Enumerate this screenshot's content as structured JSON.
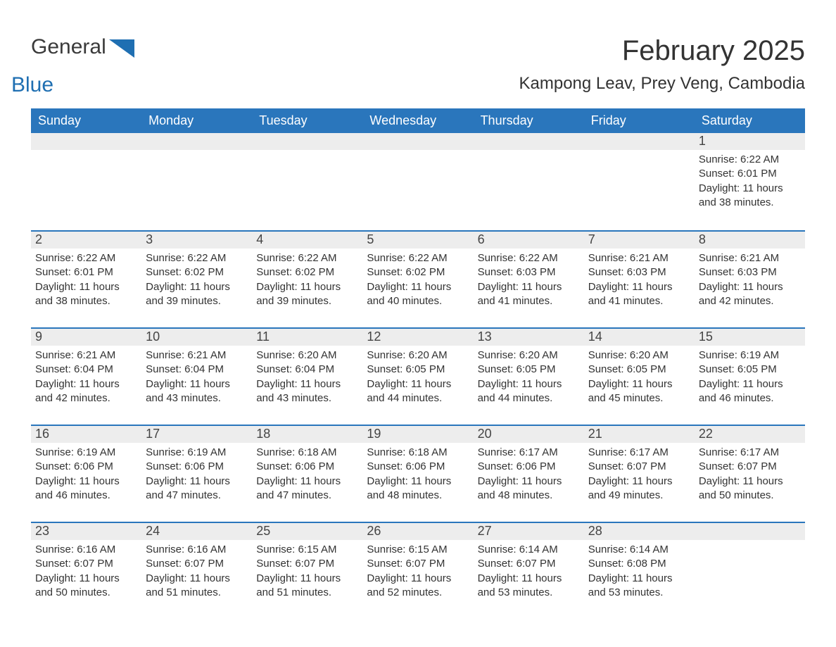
{
  "brand": {
    "name1": "General",
    "name2": "Blue",
    "logo_color": "#1f6fb2"
  },
  "title": "February 2025",
  "location": "Kampong Leav, Prey Veng, Cambodia",
  "colors": {
    "header_bg": "#2a76bc",
    "header_text": "#ffffff",
    "daynum_bg": "#ededed",
    "text": "#333333",
    "page_bg": "#ffffff"
  },
  "calendar": {
    "day_names": [
      "Sunday",
      "Monday",
      "Tuesday",
      "Wednesday",
      "Thursday",
      "Friday",
      "Saturday"
    ],
    "first_weekday_index": 6,
    "days": [
      {
        "n": 1,
        "sunrise": "6:22 AM",
        "sunset": "6:01 PM",
        "daylight": "11 hours and 38 minutes."
      },
      {
        "n": 2,
        "sunrise": "6:22 AM",
        "sunset": "6:01 PM",
        "daylight": "11 hours and 38 minutes."
      },
      {
        "n": 3,
        "sunrise": "6:22 AM",
        "sunset": "6:02 PM",
        "daylight": "11 hours and 39 minutes."
      },
      {
        "n": 4,
        "sunrise": "6:22 AM",
        "sunset": "6:02 PM",
        "daylight": "11 hours and 39 minutes."
      },
      {
        "n": 5,
        "sunrise": "6:22 AM",
        "sunset": "6:02 PM",
        "daylight": "11 hours and 40 minutes."
      },
      {
        "n": 6,
        "sunrise": "6:22 AM",
        "sunset": "6:03 PM",
        "daylight": "11 hours and 41 minutes."
      },
      {
        "n": 7,
        "sunrise": "6:21 AM",
        "sunset": "6:03 PM",
        "daylight": "11 hours and 41 minutes."
      },
      {
        "n": 8,
        "sunrise": "6:21 AM",
        "sunset": "6:03 PM",
        "daylight": "11 hours and 42 minutes."
      },
      {
        "n": 9,
        "sunrise": "6:21 AM",
        "sunset": "6:04 PM",
        "daylight": "11 hours and 42 minutes."
      },
      {
        "n": 10,
        "sunrise": "6:21 AM",
        "sunset": "6:04 PM",
        "daylight": "11 hours and 43 minutes."
      },
      {
        "n": 11,
        "sunrise": "6:20 AM",
        "sunset": "6:04 PM",
        "daylight": "11 hours and 43 minutes."
      },
      {
        "n": 12,
        "sunrise": "6:20 AM",
        "sunset": "6:05 PM",
        "daylight": "11 hours and 44 minutes."
      },
      {
        "n": 13,
        "sunrise": "6:20 AM",
        "sunset": "6:05 PM",
        "daylight": "11 hours and 44 minutes."
      },
      {
        "n": 14,
        "sunrise": "6:20 AM",
        "sunset": "6:05 PM",
        "daylight": "11 hours and 45 minutes."
      },
      {
        "n": 15,
        "sunrise": "6:19 AM",
        "sunset": "6:05 PM",
        "daylight": "11 hours and 46 minutes."
      },
      {
        "n": 16,
        "sunrise": "6:19 AM",
        "sunset": "6:06 PM",
        "daylight": "11 hours and 46 minutes."
      },
      {
        "n": 17,
        "sunrise": "6:19 AM",
        "sunset": "6:06 PM",
        "daylight": "11 hours and 47 minutes."
      },
      {
        "n": 18,
        "sunrise": "6:18 AM",
        "sunset": "6:06 PM",
        "daylight": "11 hours and 47 minutes."
      },
      {
        "n": 19,
        "sunrise": "6:18 AM",
        "sunset": "6:06 PM",
        "daylight": "11 hours and 48 minutes."
      },
      {
        "n": 20,
        "sunrise": "6:17 AM",
        "sunset": "6:06 PM",
        "daylight": "11 hours and 48 minutes."
      },
      {
        "n": 21,
        "sunrise": "6:17 AM",
        "sunset": "6:07 PM",
        "daylight": "11 hours and 49 minutes."
      },
      {
        "n": 22,
        "sunrise": "6:17 AM",
        "sunset": "6:07 PM",
        "daylight": "11 hours and 50 minutes."
      },
      {
        "n": 23,
        "sunrise": "6:16 AM",
        "sunset": "6:07 PM",
        "daylight": "11 hours and 50 minutes."
      },
      {
        "n": 24,
        "sunrise": "6:16 AM",
        "sunset": "6:07 PM",
        "daylight": "11 hours and 51 minutes."
      },
      {
        "n": 25,
        "sunrise": "6:15 AM",
        "sunset": "6:07 PM",
        "daylight": "11 hours and 51 minutes."
      },
      {
        "n": 26,
        "sunrise": "6:15 AM",
        "sunset": "6:07 PM",
        "daylight": "11 hours and 52 minutes."
      },
      {
        "n": 27,
        "sunrise": "6:14 AM",
        "sunset": "6:07 PM",
        "daylight": "11 hours and 53 minutes."
      },
      {
        "n": 28,
        "sunrise": "6:14 AM",
        "sunset": "6:08 PM",
        "daylight": "11 hours and 53 minutes."
      }
    ],
    "labels": {
      "sunrise": "Sunrise:",
      "sunset": "Sunset:",
      "daylight": "Daylight:"
    }
  }
}
